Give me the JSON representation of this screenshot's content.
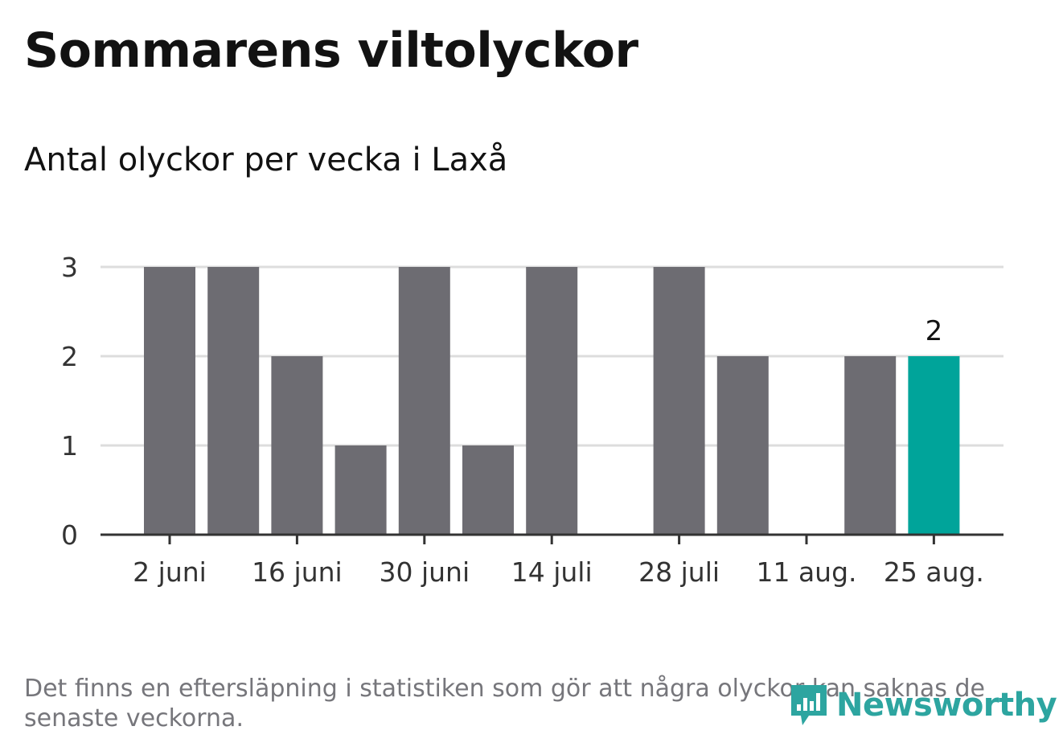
{
  "title": "Sommarens viltolyckor",
  "subtitle": "Antal olyckor per vecka i Laxå",
  "note": "Det finns en eftersläpning i statistiken som gör att några olyckor kan saknas de senaste veckorna.",
  "brand": {
    "name": "Newsworthy",
    "icon": "bar-chart-speech-bubble-icon",
    "color": "#2da5a0"
  },
  "colors": {
    "bar": "#6d6c72",
    "highlight": "#00a49a",
    "grid": "#dddddd",
    "axis": "#333333",
    "text": "#333333"
  },
  "chart_data": {
    "type": "bar",
    "categories": [
      "2 juni",
      "9 juni",
      "16 juni",
      "23 juni",
      "30 juni",
      "7 juli",
      "14 juli",
      "21 juli",
      "28 juli",
      "4 aug.",
      "11 aug.",
      "18 aug.",
      "25 aug."
    ],
    "values": [
      3,
      3,
      2,
      1,
      3,
      1,
      3,
      0,
      3,
      2,
      0,
      2,
      2
    ],
    "highlight_index": 12,
    "highlight_label": "2",
    "x_tick_labels": [
      "2 juni",
      "16 juni",
      "30 juni",
      "14 juli",
      "28 juli",
      "11 aug.",
      "25 aug."
    ],
    "y_ticks": [
      "0",
      "1",
      "2",
      "3"
    ],
    "ylim": [
      0,
      3
    ],
    "grid": true,
    "xlabel": "",
    "ylabel": ""
  }
}
